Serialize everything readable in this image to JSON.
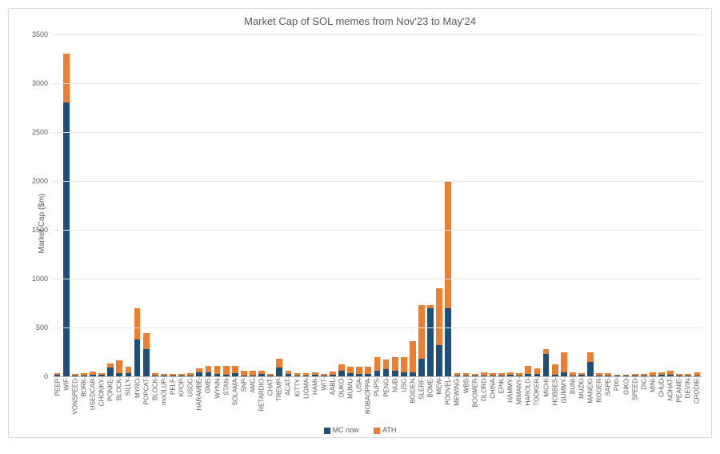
{
  "chart": {
    "type": "stacked-bar",
    "title": "Market Cap of SOL memes from Nov'23 to May'24",
    "ylabel": "Market Cap ($m)",
    "ylim": [
      0,
      3500
    ],
    "ytick_step": 500,
    "yticks": [
      0,
      500,
      1000,
      1500,
      2000,
      2500,
      3000,
      3500
    ],
    "background_color": "#ffffff",
    "grid_color": "#e6e6e6",
    "axis_color": "#bfbfbf",
    "text_color": "#595959",
    "title_fontsize": 13,
    "label_fontsize": 10,
    "tick_fontsize": 9,
    "xtick_fontsize": 8,
    "xtick_rotation": -90,
    "legend_position": "bottom",
    "series": [
      {
        "name": "MC now",
        "color": "#1f4e79"
      },
      {
        "name": "ATH",
        "color": "#ed7d31"
      }
    ],
    "categories": [
      "PEEP",
      "WIF",
      "VONSPEED",
      "BORK",
      "USEDCAR",
      "CHONKY",
      "PONKE",
      "BLOCK",
      "SILLY",
      "MYRO",
      "POPCAT",
      "BLOCK",
      "moOLUP",
      "PELF",
      "KPOP",
      "USDC",
      "HARAMBE",
      "GME",
      "WYNN",
      "STAN",
      "SOLAMA",
      "SNP",
      "AMC",
      "RETARDIO",
      "CHAT",
      "TREMP",
      "ACAT",
      "KITTY",
      "LIGMA",
      "HAMI",
      "WIT",
      "AABL",
      "DUKO",
      "MUMU",
      "USA",
      "BOBAOPPA",
      "PUPS",
      "PENG",
      "NUB",
      "USC",
      "BOIDEN",
      "SLERF",
      "BOME",
      "MEW",
      "POOVEL",
      "MEWING",
      "WBS",
      "BOOMER",
      "DLORD",
      "CHINA",
      "EPIK",
      "HAMMY",
      "MIMANY",
      "HAROLD",
      "TOOKER",
      "MICHI",
      "HOBBES",
      "GUMMY",
      "BUNI",
      "MUZKI",
      "MANEKI",
      "ROGER",
      "SAPE",
      "PIXI",
      "GIKO",
      "SPEED",
      "DIC",
      "MINI",
      "CHUD",
      "NOHAT",
      "PEANIE",
      "DEVIN",
      "CRODIE"
    ],
    "mc_now": [
      15,
      2800,
      10,
      8,
      20,
      15,
      90,
      30,
      30,
      380,
      280,
      10,
      8,
      8,
      8,
      12,
      40,
      40,
      25,
      20,
      30,
      10,
      10,
      25,
      8,
      90,
      25,
      8,
      8,
      15,
      8,
      15,
      55,
      35,
      25,
      25,
      60,
      70,
      55,
      45,
      40,
      180,
      700,
      320,
      700,
      8,
      8,
      8,
      8,
      8,
      8,
      20,
      8,
      25,
      25,
      230,
      15,
      40,
      8,
      15,
      150,
      8,
      8,
      8,
      8,
      8,
      8,
      8,
      15,
      20,
      8,
      8,
      8
    ],
    "ath": [
      30,
      3300,
      25,
      35,
      50,
      35,
      130,
      160,
      100,
      700,
      440,
      30,
      25,
      22,
      22,
      35,
      80,
      110,
      110,
      110,
      110,
      60,
      60,
      60,
      25,
      180,
      60,
      35,
      35,
      40,
      25,
      50,
      120,
      100,
      100,
      100,
      200,
      170,
      200,
      200,
      360,
      730,
      730,
      900,
      2000,
      35,
      30,
      25,
      40,
      35,
      30,
      40,
      30,
      110,
      80,
      280,
      120,
      250,
      40,
      35,
      250,
      30,
      30,
      20,
      20,
      25,
      25,
      40,
      40,
      55,
      25,
      25,
      40
    ]
  }
}
